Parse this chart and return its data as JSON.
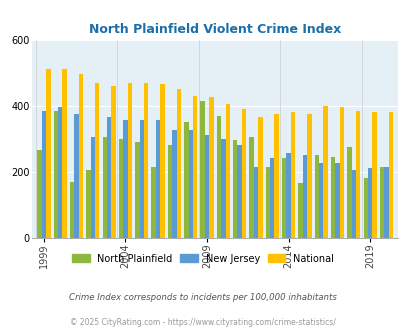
{
  "title": "North Plainfield Violent Crime Index",
  "years": [
    1999,
    2000,
    2001,
    2002,
    2003,
    2004,
    2005,
    2006,
    2007,
    2008,
    2009,
    2010,
    2011,
    2012,
    2013,
    2014,
    2015,
    2016,
    2017,
    2018,
    2019,
    2020
  ],
  "np_vals": [
    265,
    385,
    170,
    205,
    305,
    300,
    290,
    215,
    280,
    350,
    415,
    370,
    295,
    305,
    215,
    240,
    165,
    250,
    245,
    275,
    180,
    215
  ],
  "nj_vals": [
    385,
    395,
    375,
    305,
    365,
    355,
    355,
    355,
    325,
    325,
    310,
    300,
    280,
    215,
    240,
    255,
    250,
    225,
    225,
    205,
    210,
    215
  ],
  "nat_vals": [
    510,
    510,
    495,
    470,
    460,
    470,
    470,
    465,
    450,
    430,
    425,
    405,
    390,
    365,
    375,
    380,
    375,
    400,
    395,
    385,
    380,
    380
  ],
  "color_np": "#8db83d",
  "color_nj": "#5b9bd5",
  "color_nat": "#ffc000",
  "bg_color": "#e4f0f5",
  "subtitle": "Crime Index corresponds to incidents per 100,000 inhabitants",
  "footer": "© 2025 CityRating.com - https://www.cityrating.com/crime-statistics/",
  "ylim": [
    0,
    600
  ],
  "yticks": [
    0,
    200,
    400,
    600
  ],
  "xtick_years": [
    1999,
    2004,
    2009,
    2014,
    2019
  ],
  "title_color": "#1a6fa8",
  "title_fontsize": 9,
  "legend_labels": [
    "North Plainfield",
    "New Jersey",
    "National"
  ],
  "subtitle_color": "#555555",
  "footer_color": "#999999"
}
